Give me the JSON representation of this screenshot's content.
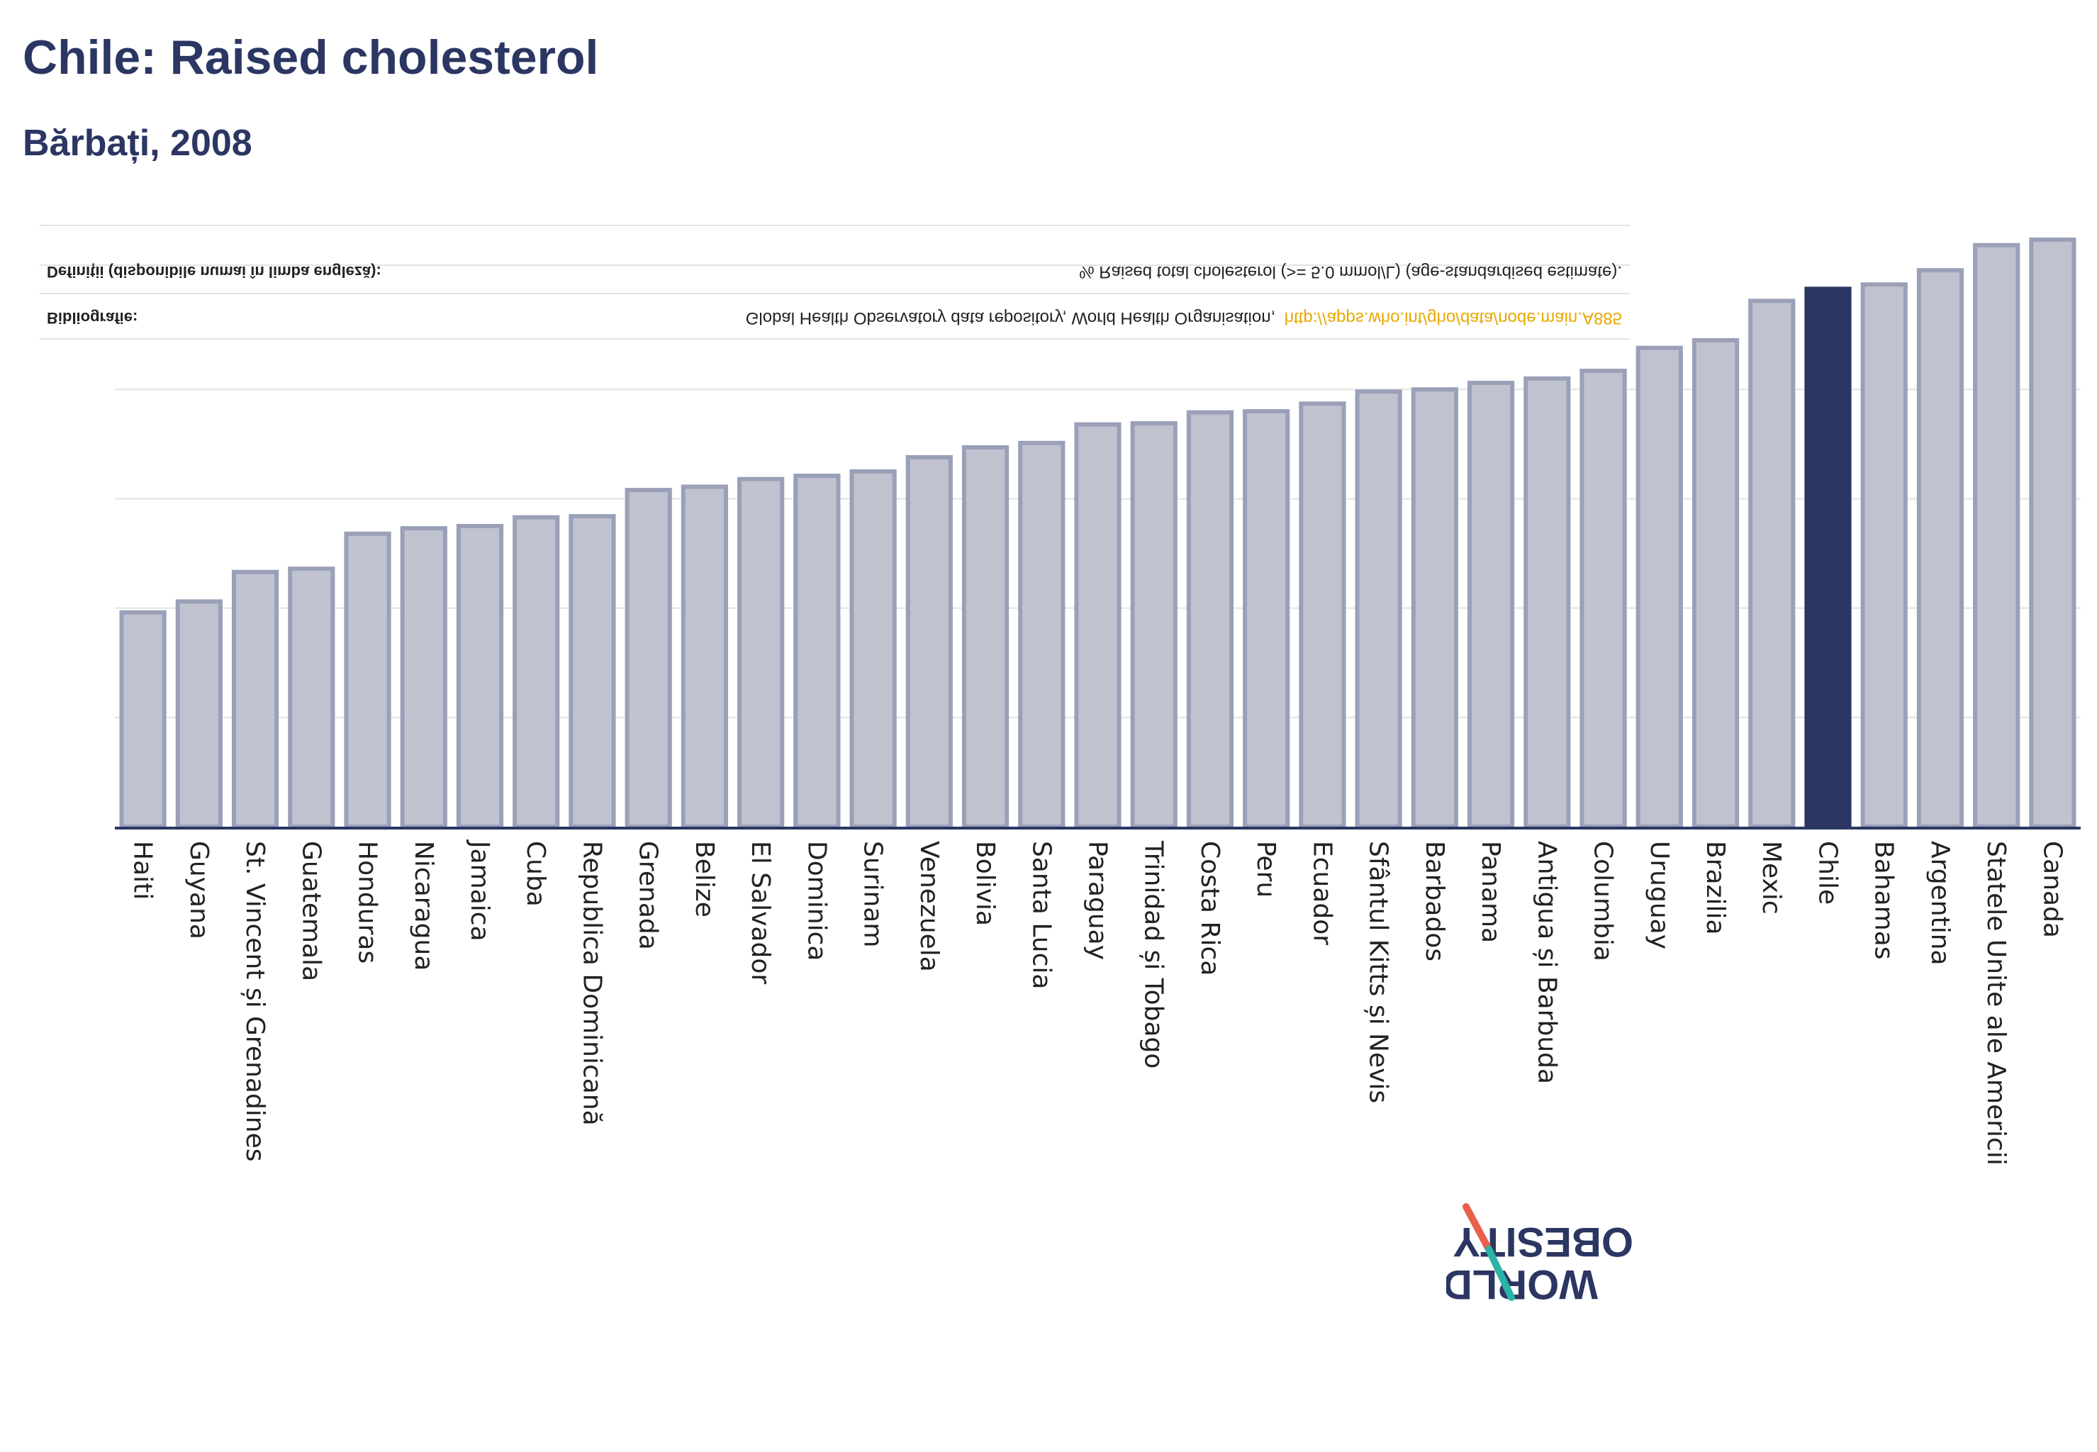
{
  "title": "Chile: Raised cholesterol",
  "subtitle": "Bărbați, 2008",
  "notes": {
    "definitions_label": "Definiții (disponibile numai în limba engleză):",
    "definitions_text": "% Raised total cholesterol (>= 5.0 mmol/L) (age-standardised estimate).",
    "bibliography_label": "Bibliografie:",
    "bibliography_text": "Global Health Observatory data repository, World Health Organisation,",
    "bibliography_link": "http://apps.who.int/gho/data/node.main.A885"
  },
  "logo": {
    "line1": "OBESITY",
    "line2": "WORLD"
  },
  "colors": {
    "bar": "#c0c3cf",
    "bar_stroke": "#9aa0b8",
    "highlight": "#2b3662",
    "axis": "#2b3662",
    "link": "#e8a800"
  },
  "chart_data": {
    "type": "bar",
    "categories": [
      "Haiti",
      "Guyana",
      "St. Vincent și Grenadines",
      "Guatemala",
      "Honduras",
      "Nicaragua",
      "Jamaica",
      "Cuba",
      "Republica Dominicană",
      "Grenada",
      "Belize",
      "El Salvador",
      "Dominica",
      "Surinam",
      "Venezuela",
      "Bolivia",
      "Santa Lucia",
      "Paraguay",
      "Trinidad și Tobago",
      "Costa Rica",
      "Peru",
      "Ecuador",
      "Sfântul Kitts și Nevis",
      "Barbados",
      "Panama",
      "Antigua și Barbuda",
      "Columbia",
      "Uruguay",
      "Brazilia",
      "Mexic",
      "Chile",
      "Bahamas",
      "Argentina",
      "Statele Unite ale Americii",
      "Canada"
    ],
    "values": [
      19.6,
      20.6,
      23.3,
      23.6,
      26.8,
      27.3,
      27.5,
      28.3,
      28.4,
      30.8,
      31.1,
      31.8,
      32.1,
      32.5,
      33.8,
      34.7,
      35.1,
      36.8,
      36.9,
      37.9,
      38.0,
      38.7,
      39.8,
      40.0,
      40.6,
      41.0,
      41.7,
      43.8,
      44.5,
      48.1,
      49.2,
      49.6,
      50.9,
      53.2,
      53.7
    ],
    "highlight": "Chile",
    "ylim": [
      0,
      55
    ],
    "grid": true,
    "xlabel": "",
    "ylabel": ""
  }
}
